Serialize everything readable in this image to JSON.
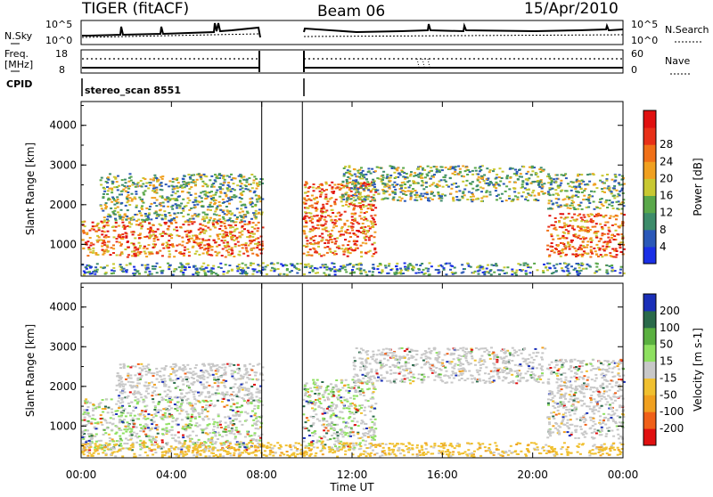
{
  "header": {
    "radar": "TIGER (fitACF)",
    "beam": "Beam 06",
    "date": "15/Apr/2010"
  },
  "noise_panel": {
    "left_label": "N.Sky",
    "right_label": "N.Search",
    "yticks_left": [
      "10^5",
      "10^0"
    ],
    "yticks_right": [
      "10^5",
      "10^0"
    ]
  },
  "freq_panel": {
    "left_label": "Freq.",
    "unit_label": "[MHz]",
    "right_label": "Nave",
    "yticks_left": [
      "18",
      "8"
    ],
    "yticks_right": [
      "60",
      "0"
    ]
  },
  "cpid": {
    "label": "CPID",
    "value": "stereo_scan 8551"
  },
  "x_axis": {
    "ticks": [
      "00:00",
      "04:00",
      "08:00",
      "12:00",
      "16:00",
      "20:00",
      "00:00"
    ],
    "label": "Time UT"
  },
  "chart_data": [
    {
      "type": "heatmap",
      "name": "power",
      "ylabel": "Slant Range [km]",
      "ylim": [
        200,
        4600
      ],
      "yticks": [
        "1000",
        "2000",
        "3000",
        "4000"
      ],
      "xlim_hours": [
        0,
        24
      ],
      "data_gap_hours": [
        8.0,
        9.8
      ],
      "colorbar": {
        "label": "Power [dB]",
        "ticks": [
          "4",
          "8",
          "12",
          "16",
          "20",
          "24",
          "28"
        ],
        "colors": [
          "#1a2fe6",
          "#2a58b8",
          "#3d8c6a",
          "#5aa84a",
          "#c8c832",
          "#f0a020",
          "#f07018",
          "#e83018",
          "#e01010"
        ]
      },
      "bands": [
        {
          "t0": 0.0,
          "t1": 8.0,
          "r0": 700,
          "r1": 1600,
          "level": "strong"
        },
        {
          "t0": 0.8,
          "t1": 8.0,
          "r0": 1600,
          "r1": 2800,
          "level": "medium"
        },
        {
          "t0": 9.8,
          "t1": 13.0,
          "r0": 700,
          "r1": 2600,
          "level": "strong"
        },
        {
          "t0": 11.5,
          "t1": 20.5,
          "r0": 2100,
          "r1": 3000,
          "level": "medium"
        },
        {
          "t0": 20.6,
          "t1": 24.0,
          "r0": 700,
          "r1": 1800,
          "level": "strong"
        },
        {
          "t0": 20.6,
          "t1": 24.0,
          "r0": 1900,
          "r1": 2800,
          "level": "medium"
        },
        {
          "t0": 0.0,
          "t1": 24.0,
          "r0": 250,
          "r1": 550,
          "level": "weak"
        }
      ]
    },
    {
      "type": "heatmap",
      "name": "velocity",
      "ylabel": "Slant Range [km]",
      "ylim": [
        200,
        4600
      ],
      "yticks": [
        "1000",
        "2000",
        "3000",
        "4000"
      ],
      "xlim_hours": [
        0,
        24
      ],
      "data_gap_hours": [
        8.0,
        9.8
      ],
      "colorbar": {
        "label": "Velocity [m s-1]",
        "ticks": [
          "200",
          "100",
          "50",
          "15",
          "-15",
          "-50",
          "-100",
          "-200"
        ],
        "colors": [
          "#1a2fb8",
          "#2a6a4a",
          "#5ab040",
          "#8ee060",
          "#c8c8c8",
          "#f0c030",
          "#f0a020",
          "#f06018",
          "#e01010"
        ]
      },
      "bands": [
        {
          "t0": 0.0,
          "t1": 8.0,
          "r0": 400,
          "r1": 1700,
          "level": "mixed"
        },
        {
          "t0": 1.5,
          "t1": 8.0,
          "r0": 1700,
          "r1": 2600,
          "level": "gray"
        },
        {
          "t0": 9.8,
          "t1": 13.0,
          "r0": 400,
          "r1": 2200,
          "level": "mixed"
        },
        {
          "t0": 12.0,
          "t1": 20.5,
          "r0": 2100,
          "r1": 3000,
          "level": "gray"
        },
        {
          "t0": 20.6,
          "t1": 24.0,
          "r0": 700,
          "r1": 2700,
          "level": "gray"
        },
        {
          "t0": 0.0,
          "t1": 24.0,
          "r0": 250,
          "r1": 600,
          "level": "orange"
        }
      ]
    }
  ]
}
